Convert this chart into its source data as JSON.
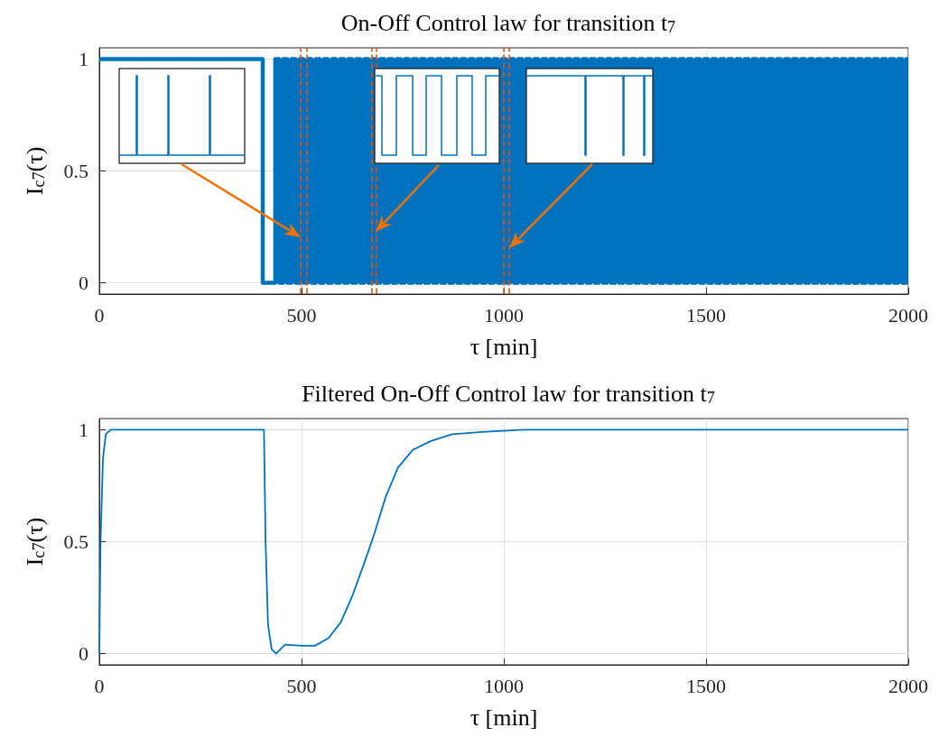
{
  "chart_data": [
    {
      "type": "step",
      "title": "On-Off Control law for transition t$_{7}$",
      "xlabel": "τ [min]",
      "ylabel": "I$_{c7}$(τ)",
      "color": "#0072bd",
      "x": [
        0,
        404,
        435,
        445,
        455,
        465,
        475,
        485,
        495,
        505,
        515,
        525,
        535,
        545,
        555,
        565,
        575,
        585,
        595,
        605,
        615,
        625,
        635,
        645,
        655,
        665,
        675,
        685,
        695,
        705,
        715,
        725,
        735,
        745,
        755,
        765,
        775,
        785,
        795,
        805,
        815,
        825,
        835,
        845,
        855,
        865,
        875,
        885,
        895,
        905,
        915,
        925,
        935,
        945,
        955,
        965,
        975,
        985,
        995,
        1005,
        1015,
        1025,
        1035,
        1045,
        1055,
        1065,
        1075,
        1085,
        1095,
        1105,
        1115,
        1125,
        1135,
        1145,
        1155,
        1165,
        1175,
        1185,
        1195,
        1205,
        1215,
        1225,
        1235,
        1245,
        1255,
        1265,
        1275,
        1285,
        1295,
        1305,
        1315,
        1325,
        1335,
        1345,
        1355,
        1365,
        1375,
        1385,
        1395,
        1405,
        1415,
        1425,
        1435,
        1445,
        1455,
        1465,
        1475,
        1485,
        1495,
        1505,
        1515,
        1525,
        1535,
        1545,
        1555,
        1565,
        1575,
        1585,
        1595,
        1605,
        1615,
        1625,
        1635,
        1645,
        1655,
        1665,
        1675,
        1685,
        1695,
        1705,
        1715,
        1725,
        1735,
        1745,
        1755,
        1765,
        1775,
        1785,
        1795,
        1805,
        1815,
        1825,
        1835,
        1845,
        1855,
        1865,
        1875,
        1885,
        1895,
        1905,
        1915,
        1925,
        1935,
        1945,
        1955,
        1965,
        1975,
        1985,
        1995,
        2000
      ],
      "values": [
        1,
        0,
        1,
        0,
        1,
        0,
        1,
        0,
        1,
        0,
        1,
        0,
        1,
        0,
        1,
        0,
        1,
        0,
        1,
        0,
        1,
        0,
        1,
        0,
        1,
        0,
        1,
        0,
        1,
        0,
        1,
        0,
        1,
        0,
        1,
        0,
        1,
        0,
        1,
        0,
        1,
        0,
        1,
        0,
        1,
        0,
        1,
        0,
        1,
        0,
        1,
        0,
        1,
        0,
        1,
        0,
        1,
        0,
        1,
        0,
        1,
        0,
        1,
        0,
        1,
        0,
        1,
        0,
        1,
        0,
        1,
        0,
        1,
        0,
        1,
        0,
        1,
        0,
        1,
        0,
        1,
        0,
        1,
        0,
        1,
        0,
        1,
        0,
        1,
        0,
        1,
        0,
        1,
        0,
        1,
        0,
        1,
        0,
        1,
        0,
        1,
        0,
        1,
        0,
        1,
        0,
        1,
        0,
        1,
        0,
        1,
        0,
        1,
        0,
        1,
        0,
        1,
        0,
        1,
        0,
        1,
        0,
        1,
        0,
        1,
        0,
        1,
        0,
        1,
        0,
        1,
        0,
        1,
        0,
        1,
        0,
        1,
        0,
        1,
        0,
        1,
        0,
        1,
        0,
        1,
        0,
        1,
        0,
        1,
        0,
        1,
        0,
        1,
        0,
        1,
        0,
        1,
        0,
        1,
        1
      ],
      "xlim": [
        0,
        2000
      ],
      "ylim": [
        -0.05,
        1.05
      ],
      "xticks": [
        0,
        500,
        1000,
        1500,
        2000
      ],
      "yticks": [
        0,
        0.5,
        1
      ],
      "grid": true,
      "ref_lines": [
        {
          "axis": "x",
          "value": 498,
          "color": "#d95319",
          "line_style": "dashed"
        },
        {
          "axis": "x",
          "value": 513,
          "color": "#d95319",
          "line_style": "dashed"
        },
        {
          "axis": "x",
          "value": 674,
          "color": "#d95319",
          "line_style": "dashed"
        },
        {
          "axis": "x",
          "value": 685,
          "color": "#d95319",
          "line_style": "dashed"
        },
        {
          "axis": "x",
          "value": 1000,
          "color": "#d95319",
          "line_style": "dashed"
        },
        {
          "axis": "x",
          "value": 1013,
          "color": "#d95319",
          "line_style": "dashed"
        }
      ]
    },
    {
      "type": "line",
      "title": "Filtered On-Off Control law for transition t$_{7}$",
      "xlabel": "τ [min]",
      "ylabel": "I$_{c7}$(τ)",
      "color": "#0072bd",
      "x": [
        0,
        3,
        9,
        16,
        28,
        407,
        411,
        417,
        426,
        437,
        448,
        459,
        500,
        533,
        567,
        597,
        626,
        656,
        679,
        708,
        738,
        775,
        820,
        872,
        946,
        1051,
        1500,
        2000
      ],
      "values": [
        0,
        0.5,
        0.87,
        0.98,
        1,
        1,
        0.5,
        0.13,
        0.02,
        0,
        0.02,
        0.04,
        0.035,
        0.035,
        0.07,
        0.14,
        0.26,
        0.41,
        0.53,
        0.7,
        0.83,
        0.91,
        0.95,
        0.98,
        0.99,
        1,
        1,
        1
      ],
      "xlim": [
        0,
        2000
      ],
      "ylim": [
        -0.05,
        1.05
      ],
      "xticks": [
        0,
        500,
        1000,
        1500,
        2000
      ],
      "yticks": [
        0,
        0.5,
        1
      ],
      "grid": true
    }
  ]
}
